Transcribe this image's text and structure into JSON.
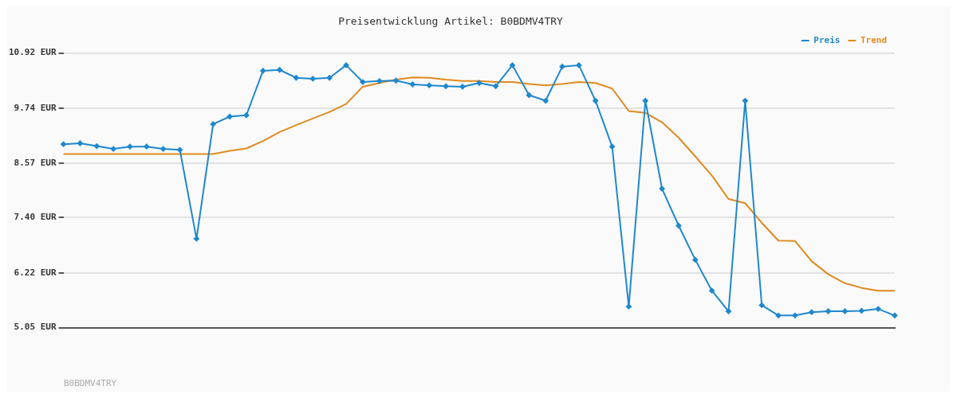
{
  "chart_data": {
    "type": "line",
    "title": "Preisentwicklung Artikel: B0BDMV4TRY",
    "categories": [
      null,
      null,
      null,
      null,
      null,
      null,
      null,
      null,
      null,
      null,
      null,
      null,
      null,
      null,
      null,
      null,
      null,
      null,
      null,
      null,
      null,
      null,
      null,
      null,
      null,
      null,
      null,
      null,
      null,
      null,
      null,
      null,
      null,
      null,
      null,
      null,
      null,
      null,
      null,
      null,
      null,
      null,
      null,
      null,
      null,
      null,
      null,
      null,
      null,
      null,
      null
    ],
    "series": [
      {
        "name": "Preis",
        "color": "#1f88cc",
        "marker": "diamond",
        "values": [
          8.97,
          8.99,
          8.93,
          8.87,
          8.92,
          8.92,
          8.87,
          8.85,
          6.95,
          9.4,
          9.56,
          9.59,
          10.54,
          10.56,
          10.39,
          10.37,
          10.39,
          10.66,
          10.3,
          10.32,
          10.33,
          10.25,
          10.23,
          10.21,
          10.2,
          10.28,
          10.21,
          10.66,
          10.02,
          9.9,
          10.63,
          10.66,
          9.9,
          8.92,
          5.5,
          9.9,
          8.02,
          7.23,
          6.5,
          5.84,
          5.4,
          9.9,
          5.53,
          5.31,
          5.31,
          5.38,
          5.4,
          5.4,
          5.41,
          5.45,
          5.31
        ]
      },
      {
        "name": "Trend",
        "color": "#e08a1e",
        "marker": "none",
        "values": [
          8.76,
          8.76,
          8.76,
          8.76,
          8.76,
          8.76,
          8.76,
          8.76,
          8.76,
          8.76,
          8.83,
          8.88,
          9.04,
          9.23,
          9.38,
          9.52,
          9.66,
          9.83,
          10.2,
          10.28,
          10.35,
          10.4,
          10.39,
          10.35,
          10.32,
          10.32,
          10.3,
          10.3,
          10.26,
          10.23,
          10.26,
          10.3,
          10.28,
          10.16,
          9.68,
          9.64,
          9.44,
          9.11,
          8.71,
          8.3,
          7.8,
          7.71,
          7.29,
          6.91,
          6.9,
          6.47,
          6.19,
          6.0,
          5.9,
          5.84,
          5.84
        ]
      }
    ],
    "ylim": [
      5.05,
      10.92
    ],
    "yticks": [
      {
        "value": 5.05,
        "label": "5.05 EUR"
      },
      {
        "value": 6.22,
        "label": "6.22 EUR"
      },
      {
        "value": 7.4,
        "label": "7.40 EUR"
      },
      {
        "value": 8.57,
        "label": "8.57 EUR"
      },
      {
        "value": 9.74,
        "label": "9.74 EUR"
      },
      {
        "value": 10.92,
        "label": "10.92 EUR"
      }
    ],
    "grid": "y",
    "legend": "top right",
    "line_style": "solid",
    "annotations": [
      "B0BDMV4TRY"
    ]
  }
}
